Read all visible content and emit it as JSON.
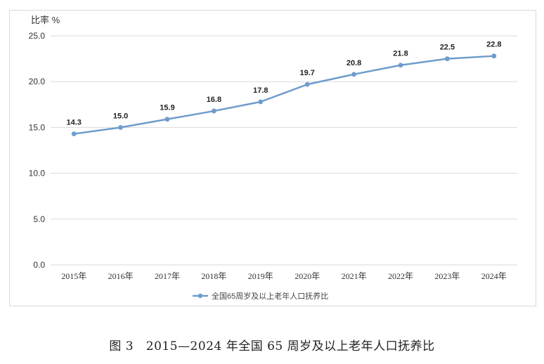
{
  "chart_data": {
    "type": "line",
    "ylabel": "比率 %",
    "ylim": [
      0,
      25
    ],
    "yticks": [
      "0.0",
      "5.0",
      "10.0",
      "15.0",
      "20.0",
      "25.0"
    ],
    "categories": [
      "2015年",
      "2016年",
      "2017年",
      "2018年",
      "2019年",
      "2020年",
      "2021年",
      "2022年",
      "2023年",
      "2024年"
    ],
    "series": [
      {
        "name": "全国65周岁及以上老年人口抚养比",
        "values": [
          14.3,
          15.0,
          15.9,
          16.8,
          17.8,
          19.7,
          20.8,
          21.8,
          22.5,
          22.8
        ],
        "labels": [
          "14.3",
          "15.0",
          "15.9",
          "16.8",
          "17.8",
          "19.7",
          "20.8",
          "21.8",
          "22.5",
          "22.8"
        ]
      }
    ],
    "grid": true,
    "legend_position": "bottom-center",
    "colors": {
      "line": "#6f9ccc",
      "marker": "#6f9ccc",
      "grid": "#d9d9d9"
    }
  },
  "caption": {
    "figure_label": "图 3",
    "text": "2015—2024 年全国 65 周岁及以上老年人口抚养比"
  }
}
